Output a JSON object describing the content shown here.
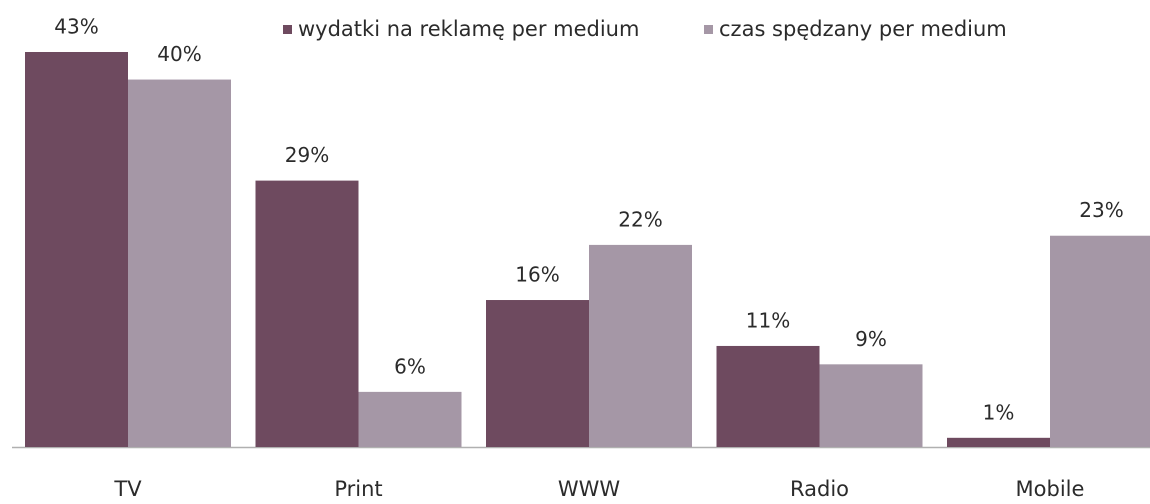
{
  "chart_data": {
    "type": "bar",
    "categories": [
      "TV",
      "Print",
      "WWW",
      "Radio",
      "Mobile"
    ],
    "series": [
      {
        "name": "wydatki na reklamę per medium",
        "color": "#6e4a5f",
        "values": [
          43,
          29,
          16,
          11,
          1
        ],
        "value_labels": [
          "43%",
          "29%",
          "16%",
          "11%",
          "1%"
        ]
      },
      {
        "name": "czas spędzany per medium",
        "color": "#a597a6",
        "values": [
          40,
          6,
          22,
          9,
          23
        ],
        "value_labels": [
          "40%",
          "6%",
          "22%",
          "9%",
          "23%"
        ]
      }
    ],
    "legend": "top"
  }
}
